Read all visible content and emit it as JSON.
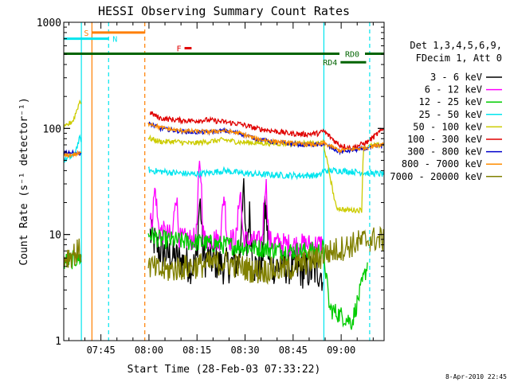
{
  "chart_data": {
    "type": "line",
    "title": "HESSI Observing Summary Count Rates",
    "xlabel": "Start Time (28-Feb-03 07:33:22)",
    "ylabel": "Count Rate (s⁻¹ detector⁻¹)",
    "ylog": true,
    "ylim": [
      1,
      1000
    ],
    "xlim_minutes": [
      0,
      100
    ],
    "x_ticks": [
      {
        "min": 11.6,
        "label": "07:45"
      },
      {
        "min": 26.6,
        "label": "08:00"
      },
      {
        "min": 41.6,
        "label": "08:15"
      },
      {
        "min": 56.6,
        "label": "08:30"
      },
      {
        "min": 71.6,
        "label": "08:45"
      },
      {
        "min": 86.6,
        "label": "09:00"
      }
    ],
    "y_ticks": [
      {
        "value": 1,
        "label": "1"
      },
      {
        "value": 10,
        "label": "10"
      },
      {
        "value": 100,
        "label": "100"
      },
      {
        "value": 1000,
        "label": "1000"
      }
    ],
    "legend_header": [
      "Det 1,3,4,5,6,9,",
      "FDecim 1, Att 0"
    ],
    "legend_position": "right",
    "flags": [
      {
        "label": "S",
        "color": "#ff7f00",
        "x0": 8.8,
        "x1": 25.3,
        "y": 800,
        "label_side": "left"
      },
      {
        "label": "N",
        "color": "#00e5ee",
        "x0": 0,
        "x1": 14.0,
        "y": 700,
        "label_side": "right"
      },
      {
        "label": "F",
        "color": "#e00000",
        "x0": 37.7,
        "x1": 39.9,
        "y": 570,
        "label_side": "left"
      },
      {
        "label": "RD0",
        "color": "#006400",
        "x0": 0,
        "x1": 100,
        "y": 505,
        "label_side": "inline"
      },
      {
        "label": "RD4",
        "color": "#006400",
        "x0": 86.4,
        "x1": 94.4,
        "y": 420,
        "label_side": "left"
      }
    ],
    "vlines": [
      {
        "x": 5.5,
        "color": "#00e5ee",
        "dash": false
      },
      {
        "x": 8.8,
        "color": "#ff7f00",
        "dash": false
      },
      {
        "x": 14.0,
        "color": "#00e5ee",
        "dash": true
      },
      {
        "x": 25.3,
        "color": "#ff7f00",
        "dash": true
      },
      {
        "x": 81.2,
        "color": "#00e5ee",
        "dash": false
      },
      {
        "x": 95.5,
        "color": "#00e5ee",
        "dash": true
      }
    ],
    "gaps": [
      [
        5.6,
        26.3
      ],
      [
        95.3,
        95.6
      ]
    ],
    "series": [
      {
        "name": "3 - 6 keV",
        "color": "#000000",
        "points": [
          [
            27,
            10
          ],
          [
            30,
            7
          ],
          [
            35,
            6
          ],
          [
            40,
            5
          ],
          [
            45,
            6
          ],
          [
            50,
            5
          ],
          [
            55,
            5.5
          ],
          [
            58,
            5
          ],
          [
            62,
            5
          ],
          [
            66,
            5
          ],
          [
            70,
            5
          ],
          [
            75,
            4.5
          ],
          [
            80,
            4.5
          ],
          [
            81,
            4
          ]
        ],
        "peaks": [
          [
            42.5,
            14
          ],
          [
            56,
            20
          ],
          [
            58,
            10
          ],
          [
            63,
            12
          ]
        ],
        "noise": 0.35
      },
      {
        "name": "6 - 12 keV",
        "color": "#ff00ff",
        "points": [
          [
            27,
            13
          ],
          [
            30,
            11
          ],
          [
            35,
            9
          ],
          [
            40,
            9
          ],
          [
            45,
            9
          ],
          [
            50,
            9
          ],
          [
            55,
            9
          ],
          [
            60,
            8.5
          ],
          [
            65,
            8.5
          ],
          [
            70,
            8
          ],
          [
            75,
            8
          ],
          [
            80,
            8
          ],
          [
            81,
            8.5
          ]
        ],
        "peaks": [
          [
            28.5,
            14
          ],
          [
            35,
            15
          ],
          [
            42.5,
            35
          ],
          [
            50,
            14
          ],
          [
            55,
            16
          ],
          [
            63,
            22
          ]
        ],
        "noise": 0.22
      },
      {
        "name": "12 - 25 keV",
        "color": "#00cc00",
        "points": [
          [
            0,
            5.5
          ],
          [
            5,
            6
          ],
          [
            27,
            10
          ],
          [
            30,
            9
          ],
          [
            40,
            8.5
          ],
          [
            50,
            8
          ],
          [
            60,
            7.5
          ],
          [
            70,
            7
          ],
          [
            80,
            7
          ],
          [
            81,
            7.5
          ],
          [
            83,
            2
          ],
          [
            90,
            1.5
          ],
          [
            95,
            5.5
          ]
        ],
        "peaks": [],
        "noise": 0.18
      },
      {
        "name": "25 - 50 keV",
        "color": "#00e5ee",
        "points": [
          [
            0,
            50
          ],
          [
            3,
            55
          ],
          [
            5,
            80
          ],
          [
            27,
            40
          ],
          [
            40,
            37
          ],
          [
            45,
            38
          ],
          [
            50,
            40
          ],
          [
            55,
            38
          ],
          [
            60,
            37
          ],
          [
            70,
            36
          ],
          [
            80,
            36
          ],
          [
            81,
            40
          ],
          [
            86,
            40
          ],
          [
            95,
            38
          ],
          [
            100,
            37
          ]
        ],
        "peaks": [],
        "noise": 0.06
      },
      {
        "name": "50 - 100 keV",
        "color": "#cccc00",
        "points": [
          [
            0,
            100
          ],
          [
            3,
            120
          ],
          [
            5,
            180
          ],
          [
            27,
            80
          ],
          [
            30,
            75
          ],
          [
            35,
            75
          ],
          [
            40,
            72
          ],
          [
            45,
            75
          ],
          [
            50,
            78
          ],
          [
            55,
            74
          ],
          [
            60,
            73
          ],
          [
            65,
            72
          ],
          [
            70,
            72
          ],
          [
            75,
            72
          ],
          [
            80,
            72
          ],
          [
            81,
            75
          ],
          [
            85,
            18
          ],
          [
            88,
            17
          ],
          [
            93,
            17
          ],
          [
            93.5,
            65
          ],
          [
            95,
            68
          ],
          [
            100,
            70
          ]
        ],
        "peaks": [],
        "noise": 0.05
      },
      {
        "name": "100 - 300 keV",
        "color": "#e00000",
        "points": [
          [
            27,
            140
          ],
          [
            30,
            125
          ],
          [
            35,
            120
          ],
          [
            40,
            118
          ],
          [
            45,
            120
          ],
          [
            50,
            115
          ],
          [
            55,
            110
          ],
          [
            60,
            100
          ],
          [
            65,
            95
          ],
          [
            70,
            90
          ],
          [
            75,
            88
          ],
          [
            80,
            90
          ],
          [
            81,
            95
          ],
          [
            86,
            70
          ],
          [
            90,
            65
          ],
          [
            95,
            75
          ],
          [
            100,
            100
          ]
        ],
        "peaks": [],
        "noise": 0.05
      },
      {
        "name": "300 - 800 keV",
        "color": "#0000cc",
        "points": [
          [
            0,
            60
          ],
          [
            5,
            58
          ],
          [
            27,
            110
          ],
          [
            30,
            100
          ],
          [
            35,
            95
          ],
          [
            40,
            92
          ],
          [
            45,
            92
          ],
          [
            50,
            95
          ],
          [
            55,
            90
          ],
          [
            60,
            80
          ],
          [
            65,
            75
          ],
          [
            70,
            72
          ],
          [
            75,
            70
          ],
          [
            80,
            70
          ],
          [
            81,
            72
          ],
          [
            86,
            60
          ],
          [
            95,
            65
          ],
          [
            100,
            70
          ]
        ],
        "peaks": [],
        "noise": 0.04
      },
      {
        "name": "800 - 7000 keV",
        "color": "#ff8c00",
        "points": [
          [
            0,
            55
          ],
          [
            5,
            58
          ],
          [
            27,
            112
          ],
          [
            30,
            102
          ],
          [
            35,
            96
          ],
          [
            40,
            94
          ],
          [
            45,
            93
          ],
          [
            50,
            95
          ],
          [
            55,
            90
          ],
          [
            60,
            80
          ],
          [
            65,
            76
          ],
          [
            70,
            73
          ],
          [
            75,
            71
          ],
          [
            80,
            70
          ],
          [
            81,
            73
          ],
          [
            86,
            62
          ],
          [
            95,
            66
          ],
          [
            100,
            72
          ]
        ],
        "peaks": [],
        "noise": 0.04
      },
      {
        "name": "7000 - 20000 keV",
        "color": "#808000",
        "points": [
          [
            0,
            6
          ],
          [
            5,
            7
          ],
          [
            27,
            5
          ],
          [
            30,
            4.5
          ],
          [
            40,
            5
          ],
          [
            50,
            5.5
          ],
          [
            60,
            4.5
          ],
          [
            70,
            4.8
          ],
          [
            80,
            6
          ],
          [
            81,
            6.5
          ],
          [
            90,
            8
          ],
          [
            95,
            9
          ],
          [
            100,
            9
          ]
        ],
        "peaks": [],
        "noise": 0.25
      }
    ]
  },
  "footer": {
    "timestamp": "8-Apr-2010 22:45"
  }
}
